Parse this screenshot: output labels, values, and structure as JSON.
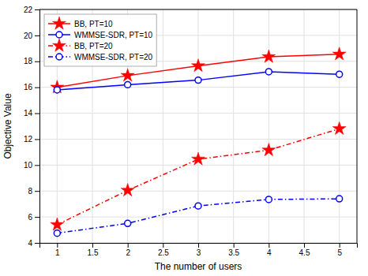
{
  "chart_data": {
    "type": "line",
    "xlabel": "The number of users",
    "ylabel": "Objective Value",
    "x": [
      1,
      2,
      3,
      4,
      5
    ],
    "xlim": [
      0.75,
      5.25
    ],
    "ylim": [
      4,
      22
    ],
    "xticks": [
      1,
      1.5,
      2,
      2.5,
      3,
      3.5,
      4,
      4.5,
      5
    ],
    "yticks": [
      4,
      6,
      8,
      10,
      12,
      14,
      16,
      18,
      20,
      22
    ],
    "grid": true,
    "legend": "upper left",
    "series": [
      {
        "name": "BB, PT=10",
        "color": "#FF0000",
        "marker": "star",
        "line_style": "solid",
        "values": [
          16.0,
          16.9,
          17.65,
          18.35,
          18.55
        ]
      },
      {
        "name": "WMMSE-SDR, PT=10",
        "color": "#0000FF",
        "marker": "circle",
        "line_style": "solid",
        "values": [
          15.8,
          16.2,
          16.55,
          17.2,
          17.0
        ]
      },
      {
        "name": "BB, PT=20",
        "color": "#FF0000",
        "marker": "star",
        "line_style": "dashdot",
        "values": [
          5.4,
          8.05,
          10.45,
          11.15,
          12.8
        ]
      },
      {
        "name": "WMMSE-SDR, PT=20",
        "color": "#0000FF",
        "marker": "circle",
        "line_style": "dashdot",
        "values": [
          4.75,
          5.5,
          6.85,
          7.35,
          7.4
        ]
      }
    ]
  }
}
